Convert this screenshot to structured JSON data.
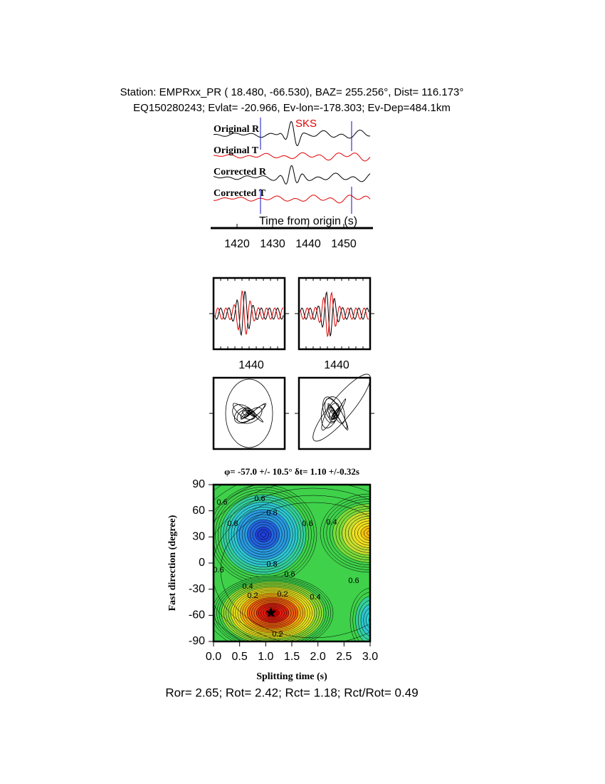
{
  "header": {
    "line1": "Station: EMPRxx_PR (  18.480,  -66.530), BAZ=  255.256°, Dist=  116.173°",
    "line2": "EQ150280243; Evlat= -20.966, Ev-lon=-178.303; Ev-Dep=484.1km"
  },
  "traces": {
    "labels": [
      "Original R",
      "Original T",
      "Corrected R",
      "Corrected T"
    ],
    "phase": "SKS",
    "xlabel": "Time from origin (s)",
    "xlim": [
      1413.4,
      1457.4
    ],
    "xticks": [
      1420,
      1430,
      1440,
      1450
    ]
  },
  "panels": [
    {
      "xtick": 1440
    },
    {
      "xtick": 1440
    }
  ],
  "grid_search": {
    "title": "φ= -57.0 +/- 10.5° δt= 1.10 +/-0.32s",
    "xlabel": "Splitting time (s)",
    "ylabel": "Fast direction (degree)",
    "xlim": [
      0,
      3
    ],
    "ylim": [
      -90,
      90
    ],
    "xticks": [
      {
        "value": 0,
        "label": "0.0"
      },
      0.5,
      {
        "value": 1,
        "label": "1.0"
      },
      1.5,
      {
        "value": 2,
        "label": "2.0"
      },
      2.5,
      {
        "value": 3,
        "label": "3.0"
      }
    ],
    "yticks": [
      90,
      60,
      30,
      0,
      -30,
      -60,
      -90
    ],
    "best": {
      "x": 1.1,
      "y": -57.0
    },
    "contour_labels": [
      "0.6",
      "0.8",
      "0.8",
      "0.6",
      "0.6",
      "0.4",
      "0.8",
      "0.6",
      "0.6",
      "0.4",
      "0.2",
      "0.2",
      "0.4",
      "0.6",
      "0.2"
    ]
  },
  "footer": "Ror= 2.65; Rot= 2.42; Rct= 1.18; Rct/Rot= 0.49"
}
